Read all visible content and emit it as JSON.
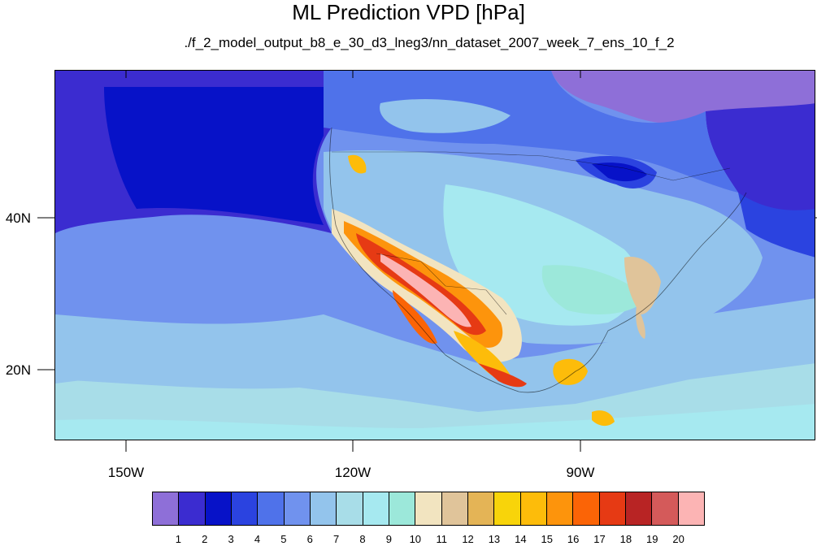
{
  "title": "ML Prediction VPD [hPa]",
  "subtitle": "./f_2_model_output_b8_e_30_d3_lneg3/nn_dataset_2007_week_7_ens_10_f_2",
  "axes": {
    "lat_labels": [
      "40N",
      "20N"
    ],
    "lon_labels": [
      "150W",
      "120W",
      "90W"
    ]
  },
  "colorbar": {
    "colors": [
      "#8e6fd8",
      "#3b2cd0",
      "#0712c8",
      "#2b43e0",
      "#4f72ea",
      "#7092ee",
      "#93c4ec",
      "#a8dde8",
      "#a6e9f0",
      "#9ce8da",
      "#f2e4c0",
      "#e0c49a",
      "#e4b456",
      "#f8d40a",
      "#fdbc0a",
      "#fd940c",
      "#fb6406",
      "#e63a14",
      "#b82424",
      "#d45a5a",
      "#fcb4b4"
    ],
    "labels": [
      "1",
      "2",
      "3",
      "4",
      "5",
      "6",
      "7",
      "8",
      "9",
      "10",
      "11",
      "12",
      "13",
      "14",
      "15",
      "16",
      "17",
      "18",
      "19",
      "20"
    ]
  }
}
